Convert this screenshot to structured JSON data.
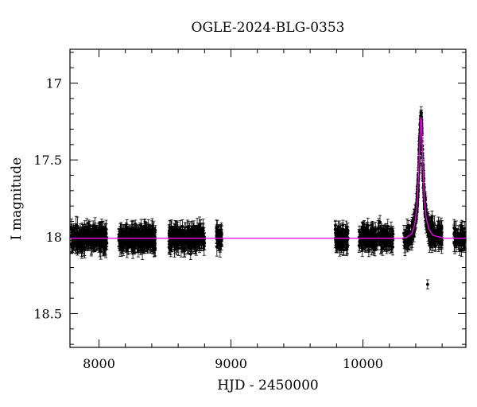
{
  "chart_data": {
    "type": "scatter",
    "title": "OGLE-2024-BLG-0353",
    "xlabel": "HJD - 2450000",
    "ylabel": "I magnitude",
    "xlim": [
      7780,
      10780
    ],
    "ylim": [
      18.72,
      16.78
    ],
    "y_inverted": true,
    "grid": false,
    "legend": "none",
    "xticks": [
      "8000",
      "9000",
      "10000"
    ],
    "yticks": [
      "17",
      "17.5",
      "18",
      "18.5"
    ],
    "colors": {
      "data": "#000000",
      "model": "#ff00ff"
    },
    "baseline_mag": 18.01,
    "peak": {
      "x": 10440,
      "y": 17.22
    },
    "outlier": {
      "x": 10490,
      "y": 18.31
    },
    "season_ranges_x": [
      [
        7790,
        8060
      ],
      [
        8150,
        8430
      ],
      [
        8530,
        8800
      ],
      [
        8890,
        8930
      ],
      [
        9790,
        9890
      ],
      [
        9970,
        10230
      ],
      [
        10310,
        10470
      ],
      [
        10470,
        10600
      ],
      [
        10690,
        10780
      ]
    ],
    "model_curve": {
      "x": [
        7780,
        10300,
        10340,
        10370,
        10390,
        10405,
        10415,
        10425,
        10432,
        10438,
        10441,
        10444,
        10448,
        10455,
        10465,
        10480,
        10500,
        10530,
        10570,
        10620,
        10780
      ],
      "y": [
        18.01,
        18.01,
        18.0,
        17.98,
        17.93,
        17.84,
        17.72,
        17.52,
        17.35,
        17.24,
        17.22,
        17.25,
        17.35,
        17.55,
        17.75,
        17.88,
        17.95,
        17.99,
        18.0,
        18.01,
        18.01
      ]
    }
  }
}
